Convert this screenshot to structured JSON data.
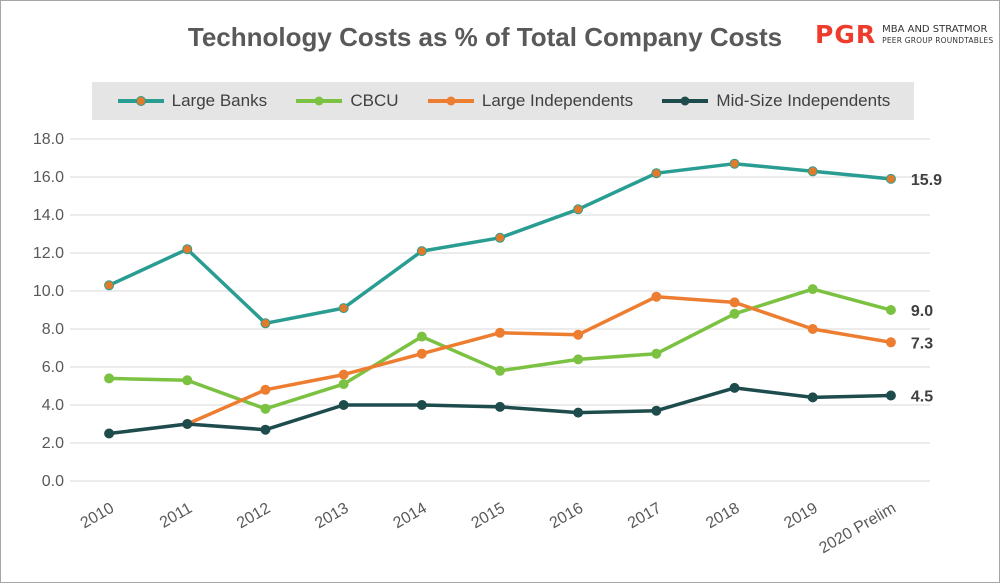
{
  "title": "Technology Costs as % of Total Company Costs",
  "logo": {
    "mark": "PGR",
    "line1": "MBA AND STRATMOR",
    "line2": "PEER GROUP ROUNDTABLES"
  },
  "chart_data": {
    "type": "line",
    "title": "Technology Costs as % of Total Company Costs",
    "categories": [
      "2010",
      "2011",
      "2012",
      "2013",
      "2014",
      "2015",
      "2016",
      "2017",
      "2018",
      "2019",
      "2020 Prelim"
    ],
    "ylim": [
      0,
      18
    ],
    "yticks": [
      "0.0",
      "2.0",
      "4.0",
      "6.0",
      "8.0",
      "10.0",
      "12.0",
      "14.0",
      "16.0",
      "18.0"
    ],
    "grid": true,
    "legend": "top",
    "series": [
      {
        "name": "Large Banks",
        "color": "#2a9d92",
        "marker": "#e07b2b",
        "end_label": "15.9",
        "values": [
          10.3,
          12.2,
          8.3,
          9.1,
          12.1,
          12.8,
          14.3,
          16.2,
          16.7,
          16.3,
          15.9
        ]
      },
      {
        "name": "CBCU",
        "color": "#7cc242",
        "marker": "#7cc242",
        "end_label": "9.0",
        "values": [
          5.4,
          5.3,
          3.8,
          5.1,
          7.6,
          5.8,
          6.4,
          6.7,
          8.8,
          10.1,
          9.0
        ]
      },
      {
        "name": "Large Independents",
        "color": "#ed7d31",
        "marker": "#ed7d31",
        "end_label": "7.3",
        "values": [
          null,
          3.0,
          4.8,
          5.6,
          6.7,
          7.8,
          7.7,
          9.7,
          9.4,
          8.0,
          7.3
        ]
      },
      {
        "name": "Mid-Size Independents",
        "color": "#1e4c4c",
        "marker": "#1e4c4c",
        "end_label": "4.5",
        "values": [
          2.5,
          3.0,
          2.7,
          4.0,
          4.0,
          3.9,
          3.6,
          3.7,
          4.9,
          4.4,
          4.5
        ]
      }
    ]
  }
}
